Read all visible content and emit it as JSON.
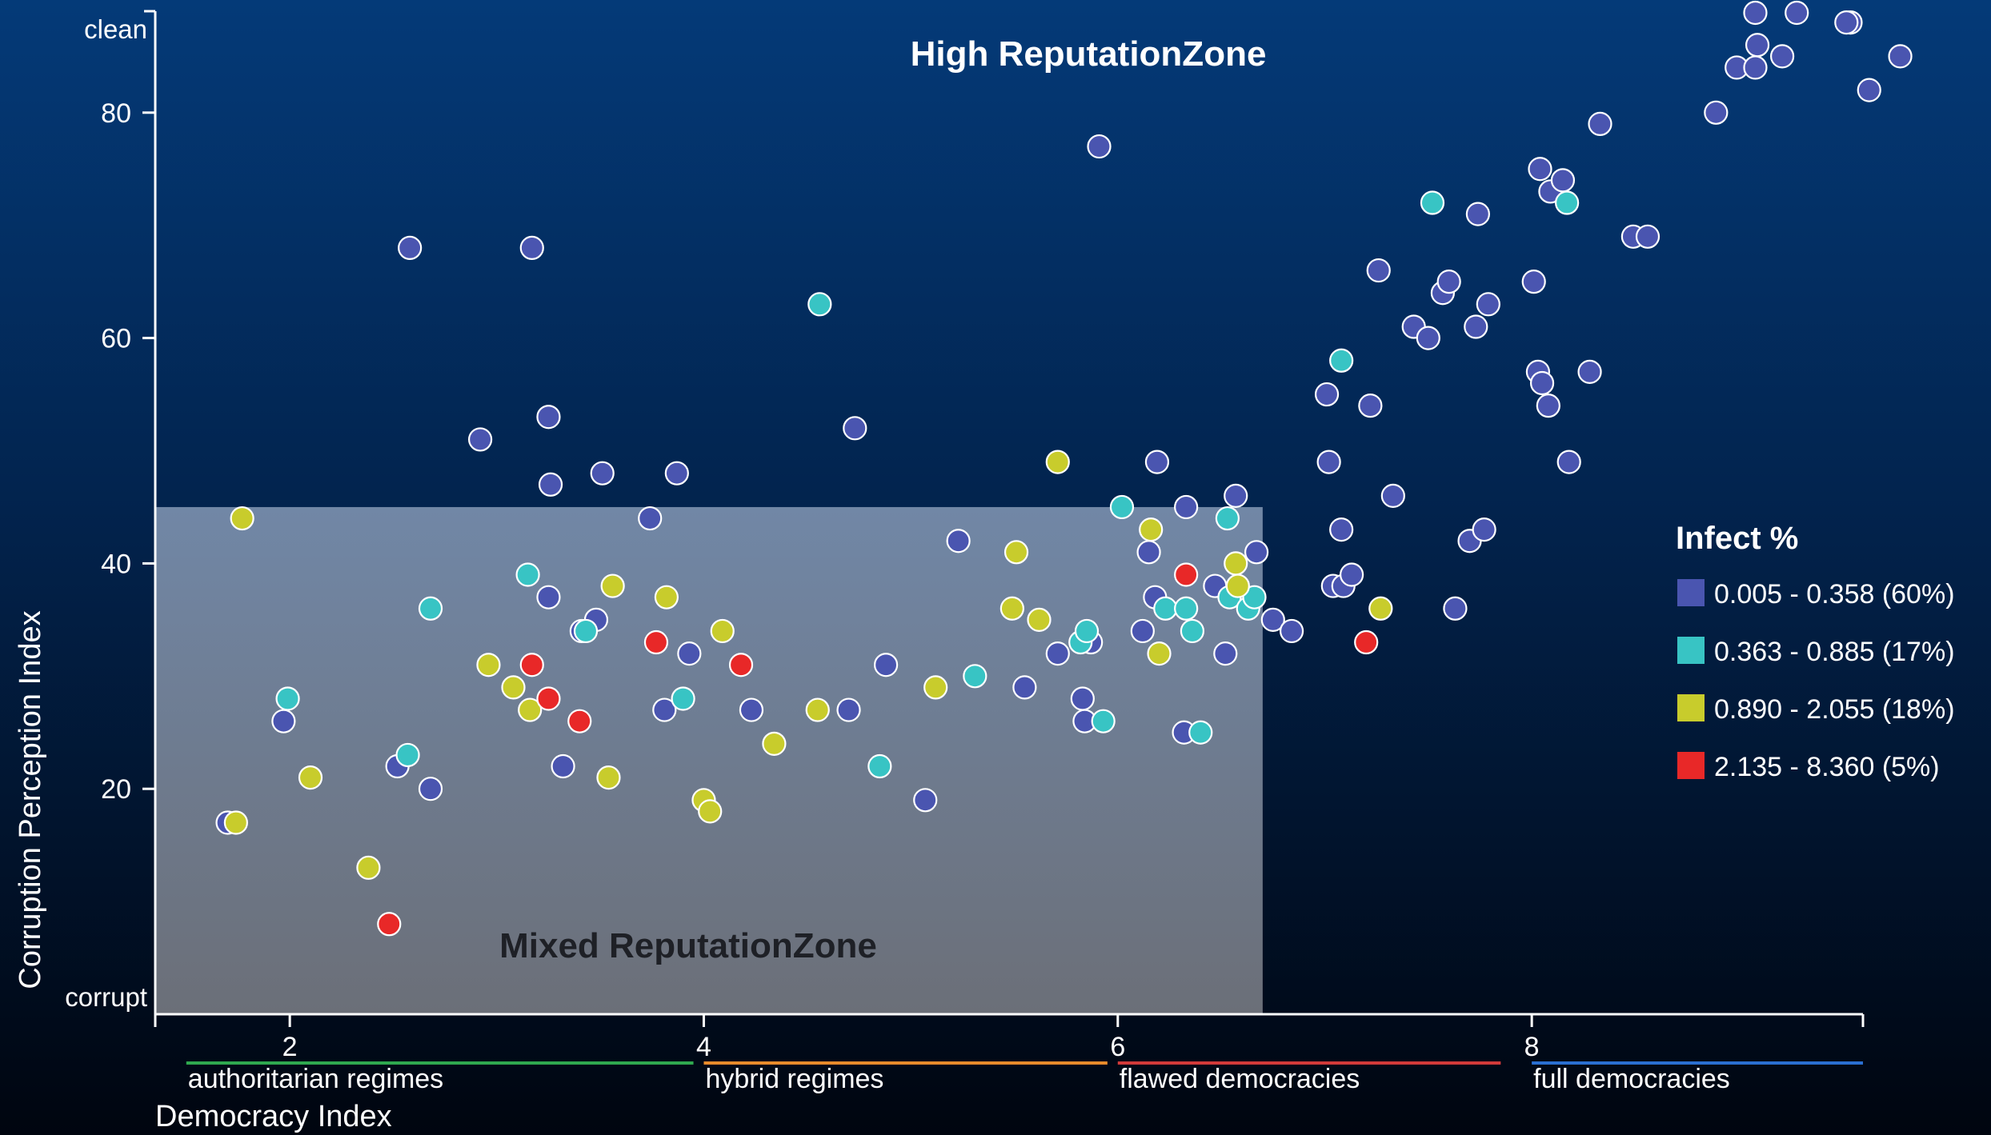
{
  "chart_data": {
    "type": "scatter",
    "title": "",
    "xlabel": "Democracy Index",
    "ylabel": "Corruption Perception Index",
    "xlim": [
      1.35,
      9.6
    ],
    "ylim": [
      0,
      89
    ],
    "x_ticks": [
      "2",
      "4",
      "6",
      "8"
    ],
    "y_ticks": [
      "20",
      "40",
      "60",
      "80"
    ],
    "y_top_label": "clean",
    "y_bottom_label": "corrupt",
    "zones": [
      {
        "label": "High ReputationZone"
      },
      {
        "label": "Mixed ReputationZone",
        "x_max": 6.7,
        "y_max": 45
      }
    ],
    "regime_bands": [
      {
        "label": "authoritarian regimes",
        "x_range": [
          1.5,
          3.95
        ],
        "color": "#2fa84f"
      },
      {
        "label": "hybrid regimes",
        "x_range": [
          4.0,
          5.95
        ],
        "color": "#e88a2c"
      },
      {
        "label": "flawed democracies",
        "x_range": [
          6.0,
          7.85
        ],
        "color": "#d23a3a"
      },
      {
        "label": "full democracies",
        "x_range": [
          8.0,
          9.6
        ],
        "color": "#2a6fd1"
      }
    ],
    "legend": {
      "title": "Infect %",
      "placement": "right",
      "items": [
        {
          "label": "0.005 - 0.358 (60%)",
          "color": "#4a55b0"
        },
        {
          "label": "0.363 - 0.885 (17%)",
          "color": "#38c4c4"
        },
        {
          "label": "0.890 - 2.055 (18%)",
          "color": "#c8cc2c"
        },
        {
          "label": "2.135 - 8.360 (5%)",
          "color": "#e82828"
        }
      ]
    },
    "series": [
      {
        "color": "#4a55b0",
        "points": [
          [
            1.7,
            17
          ],
          [
            1.97,
            26
          ],
          [
            2.52,
            22
          ],
          [
            2.58,
            68
          ],
          [
            2.68,
            20
          ],
          [
            2.92,
            51
          ],
          [
            3.17,
            68
          ],
          [
            3.25,
            53
          ],
          [
            3.26,
            47
          ],
          [
            3.25,
            37
          ],
          [
            3.32,
            22
          ],
          [
            3.41,
            34
          ],
          [
            3.48,
            35
          ],
          [
            3.51,
            48
          ],
          [
            3.74,
            44
          ],
          [
            3.81,
            27
          ],
          [
            3.87,
            48
          ],
          [
            3.93,
            32
          ],
          [
            4.23,
            27
          ],
          [
            4.73,
            52
          ],
          [
            4.7,
            27
          ],
          [
            4.88,
            31
          ],
          [
            5.07,
            19
          ],
          [
            5.23,
            42
          ],
          [
            5.55,
            29
          ],
          [
            5.71,
            32
          ],
          [
            5.83,
            28
          ],
          [
            5.84,
            26
          ],
          [
            5.87,
            33
          ],
          [
            5.91,
            77
          ],
          [
            6.12,
            34
          ],
          [
            6.15,
            41
          ],
          [
            6.18,
            37
          ],
          [
            6.19,
            49
          ],
          [
            6.32,
            25
          ],
          [
            6.33,
            45
          ],
          [
            6.47,
            38
          ],
          [
            6.52,
            32
          ],
          [
            6.57,
            46
          ],
          [
            6.67,
            41
          ],
          [
            6.75,
            35
          ],
          [
            6.84,
            34
          ],
          [
            7.01,
            55
          ],
          [
            7.02,
            49
          ],
          [
            7.04,
            38
          ],
          [
            7.08,
            43
          ],
          [
            7.09,
            38
          ],
          [
            7.13,
            39
          ],
          [
            7.22,
            54
          ],
          [
            7.26,
            66
          ],
          [
            7.33,
            46
          ],
          [
            7.43,
            61
          ],
          [
            7.5,
            60
          ],
          [
            7.57,
            64
          ],
          [
            7.6,
            65
          ],
          [
            7.63,
            36
          ],
          [
            7.7,
            42
          ],
          [
            7.73,
            61
          ],
          [
            7.74,
            71
          ],
          [
            7.77,
            43
          ],
          [
            7.79,
            63
          ],
          [
            8.01,
            65
          ],
          [
            8.03,
            57
          ],
          [
            8.04,
            75
          ],
          [
            8.05,
            56
          ],
          [
            8.08,
            54
          ],
          [
            8.09,
            73
          ],
          [
            8.15,
            74
          ],
          [
            8.18,
            49
          ],
          [
            8.28,
            57
          ],
          [
            8.33,
            79
          ],
          [
            8.49,
            69
          ],
          [
            8.56,
            69
          ],
          [
            8.89,
            80
          ],
          [
            8.99,
            84
          ],
          [
            9.08,
            84
          ],
          [
            9.09,
            86
          ],
          [
            9.21,
            85
          ],
          [
            9.08,
            89
          ],
          [
            9.28,
            89
          ],
          [
            9.54,
            88
          ],
          [
            9.52,
            88
          ],
          [
            9.63,
            82
          ],
          [
            9.78,
            85
          ]
        ]
      },
      {
        "color": "#38c4c4",
        "points": [
          [
            1.99,
            28
          ],
          [
            2.57,
            23
          ],
          [
            2.68,
            36
          ],
          [
            3.15,
            39
          ],
          [
            3.43,
            34
          ],
          [
            3.9,
            28
          ],
          [
            4.56,
            63
          ],
          [
            4.85,
            22
          ],
          [
            5.31,
            30
          ],
          [
            5.82,
            33
          ],
          [
            5.85,
            34
          ],
          [
            5.93,
            26
          ],
          [
            6.02,
            45
          ],
          [
            6.23,
            36
          ],
          [
            6.33,
            36
          ],
          [
            6.36,
            34
          ],
          [
            6.4,
            25
          ],
          [
            6.53,
            44
          ],
          [
            6.54,
            37
          ],
          [
            6.63,
            36
          ],
          [
            6.66,
            37
          ],
          [
            7.08,
            58
          ],
          [
            7.52,
            72
          ],
          [
            8.17,
            72
          ]
        ]
      },
      {
        "color": "#c8cc2c",
        "points": [
          [
            1.74,
            17
          ],
          [
            1.77,
            44
          ],
          [
            2.1,
            21
          ],
          [
            2.38,
            13
          ],
          [
            2.96,
            31
          ],
          [
            3.08,
            29
          ],
          [
            3.16,
            27
          ],
          [
            3.54,
            21
          ],
          [
            3.56,
            38
          ],
          [
            3.82,
            37
          ],
          [
            4.0,
            19
          ],
          [
            4.03,
            18
          ],
          [
            4.09,
            34
          ],
          [
            4.34,
            24
          ],
          [
            4.55,
            27
          ],
          [
            5.12,
            29
          ],
          [
            5.49,
            36
          ],
          [
            5.51,
            41
          ],
          [
            5.62,
            35
          ],
          [
            5.71,
            49
          ],
          [
            6.16,
            43
          ],
          [
            6.2,
            32
          ],
          [
            6.57,
            40
          ],
          [
            6.58,
            38
          ],
          [
            7.27,
            36
          ]
        ]
      },
      {
        "color": "#e82828",
        "points": [
          [
            2.48,
            8
          ],
          [
            3.17,
            31
          ],
          [
            3.25,
            28
          ],
          [
            3.4,
            26
          ],
          [
            3.77,
            33
          ],
          [
            4.18,
            31
          ],
          [
            6.33,
            39
          ],
          [
            7.2,
            33
          ]
        ]
      }
    ]
  }
}
